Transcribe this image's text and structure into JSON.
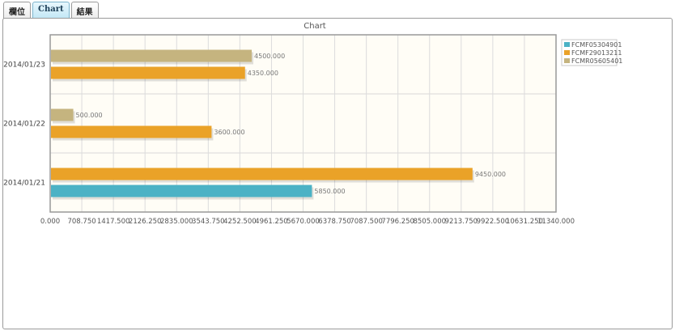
{
  "tabs": [
    {
      "label": "欄位",
      "active": false
    },
    {
      "label": "Chart",
      "active": true
    },
    {
      "label": "結果",
      "active": false
    }
  ],
  "chart_data": {
    "type": "bar",
    "orientation": "horizontal",
    "title": "Chart",
    "xlabel": "",
    "ylabel": "",
    "xlim": [
      0,
      11340
    ],
    "x_ticks": [
      "0.000",
      "708.750",
      "1417.500",
      "2126.250",
      "2835.000",
      "3543.750",
      "4252.500",
      "4961.250",
      "5670.000",
      "6378.750",
      "7087.500",
      "7796.250",
      "8505.000",
      "9213.750",
      "9922.500",
      "10631.250",
      "11340.000"
    ],
    "categories": [
      "2014/01/21",
      "2014/01/22",
      "2014/01/23"
    ],
    "series": [
      {
        "name": "FCMF05304901",
        "color": "#4bb2c5",
        "values": [
          5850,
          null,
          null
        ],
        "labels": [
          "5850.000",
          "",
          ""
        ]
      },
      {
        "name": "FCMF29013211",
        "color": "#eaa228",
        "values": [
          9450,
          3600,
          4350
        ],
        "labels": [
          "9450.000",
          "3600.000",
          "4350.000"
        ]
      },
      {
        "name": "FCMR05605401",
        "color": "#c5b47f",
        "values": [
          null,
          500,
          4500
        ],
        "labels": [
          "",
          "500.000",
          "4500.000"
        ]
      }
    ],
    "grid": true,
    "legend_position": "right",
    "plot_background": "#fffdf6"
  }
}
